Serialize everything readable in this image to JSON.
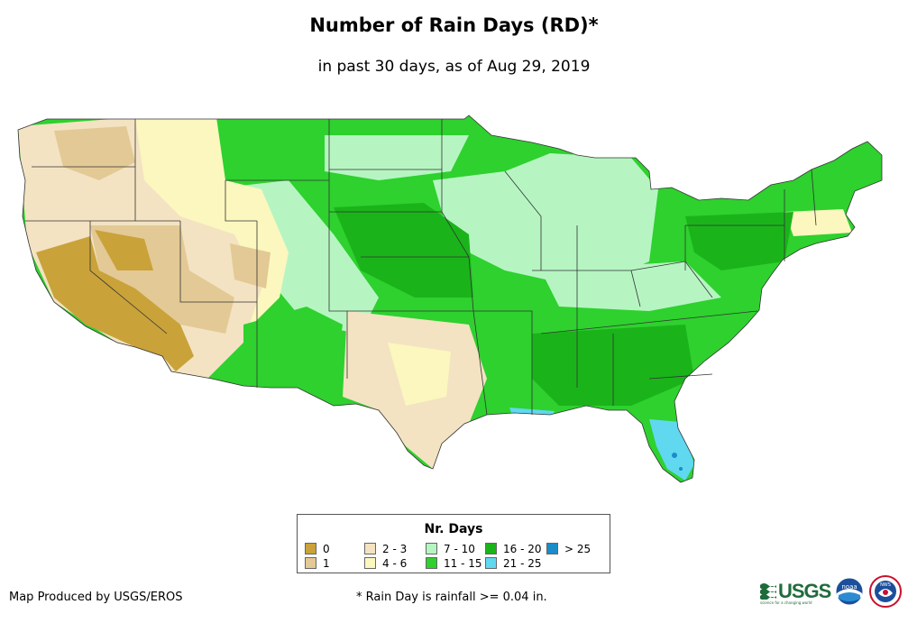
{
  "header": {
    "title": "Number of Rain Days (RD)*",
    "subtitle": "in past 30 days, as of Aug 29, 2019"
  },
  "map": {
    "region": "Contiguous United States",
    "palette": {
      "0": "#c9a23a",
      "1": "#e3c995",
      "2-3": "#f3e3c2",
      "4-6": "#fbf7bf",
      "7-10": "#b6f5c2",
      "11-15": "#2ed12e",
      "16-20": "#1ab41a",
      "21-25": "#5fd8f0",
      ">25": "#1a8cc9"
    }
  },
  "legend": {
    "title": "Nr. Days",
    "items": [
      {
        "label": "0",
        "color": "#c9a23a"
      },
      {
        "label": "1",
        "color": "#e3c995"
      },
      {
        "label": "2 - 3",
        "color": "#f3e3c2"
      },
      {
        "label": "4 - 6",
        "color": "#fbf7bf"
      },
      {
        "label": "7 - 10",
        "color": "#b6f5c2"
      },
      {
        "label": "11 - 15",
        "color": "#2ed12e"
      },
      {
        "label": "16 - 20",
        "color": "#1ab41a"
      },
      {
        "label": "21 - 25",
        "color": "#5fd8f0"
      },
      {
        "label": "> 25",
        "color": "#1a8cc9"
      }
    ]
  },
  "footer": {
    "credit": "Map Produced by USGS/EROS",
    "footnote": "* Rain Day is rainfall >= 0.04 in.",
    "logos": {
      "usgs": "USGS",
      "usgs_tagline": "science for a changing world",
      "noaa": "noaa",
      "nws": "NWS"
    }
  }
}
